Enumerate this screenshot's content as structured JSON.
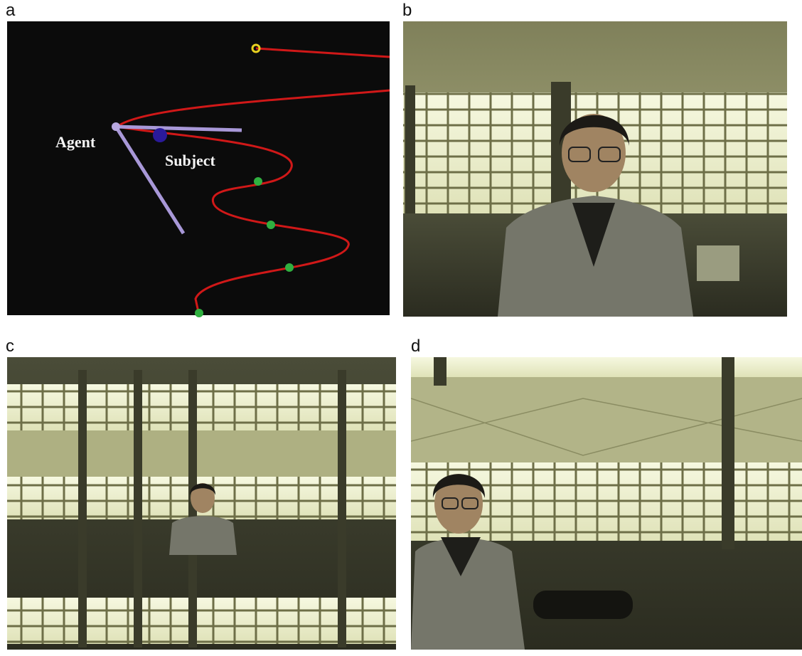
{
  "panels": [
    {
      "label": "a"
    },
    {
      "label": "b"
    },
    {
      "label": "c"
    },
    {
      "label": "d"
    }
  ],
  "annotations": {
    "agent": "Agent",
    "subject": "Subject"
  }
}
